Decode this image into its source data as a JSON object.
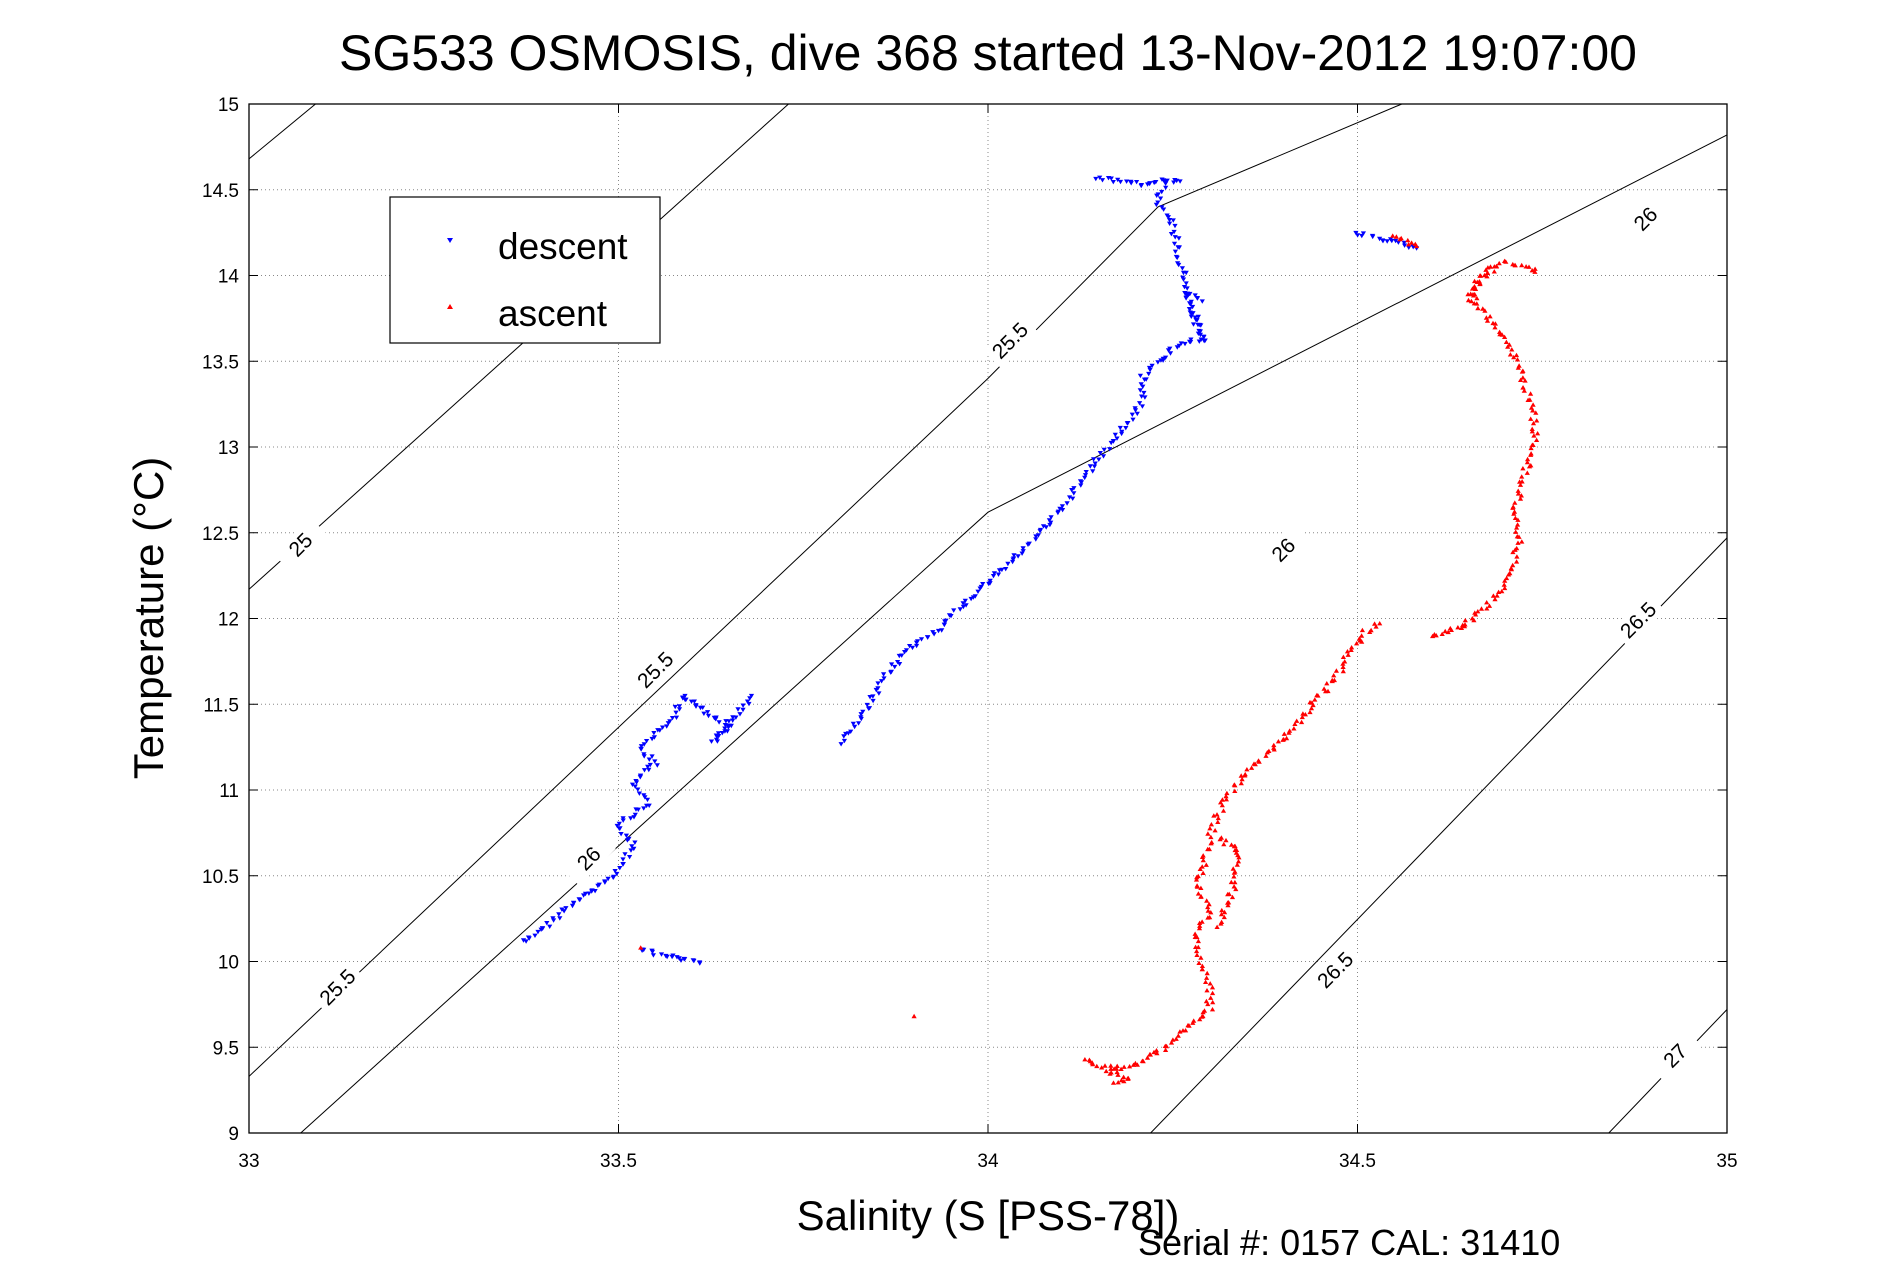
{
  "chart_data": {
    "type": "scatter",
    "title": "SG533 OSMOSIS, dive 368 started 13-Nov-2012 19:07:00",
    "xlabel": "Salinity (S [PSS-78])",
    "ylabel": "Temperature (°C)",
    "xlim": [
      33,
      35
    ],
    "ylim": [
      9,
      15
    ],
    "xticks": [
      "33",
      "33.5",
      "34",
      "34.5",
      "35"
    ],
    "yticks": [
      "9",
      "9.5",
      "10",
      "10.5",
      "11",
      "11.5",
      "12",
      "12.5",
      "13",
      "13.5",
      "14",
      "14.5",
      "15"
    ],
    "grid": true,
    "legend_position": "upper-left",
    "footer": "Serial #: 0157  CAL: 31410",
    "colors": {
      "descent": "#0000ff",
      "ascent": "#ff0000",
      "axes": "#000000",
      "grid": "#888888"
    },
    "isopycnals": [
      {
        "label": "25",
        "points": [
          [
            33.0,
            14.68
          ],
          [
            33.09,
            15.0
          ]
        ]
      },
      {
        "label": "25",
        "points": [
          [
            33.0,
            12.17
          ],
          [
            33.73,
            15.0
          ]
        ]
      },
      {
        "label": "25.5",
        "points": [
          [
            33.0,
            9.33
          ],
          [
            34.0,
            13.4
          ],
          [
            34.23,
            14.4
          ],
          [
            34.56,
            15.0
          ]
        ]
      },
      {
        "label": "26",
        "points": [
          [
            33.07,
            9.0
          ],
          [
            34.0,
            12.62
          ],
          [
            35.0,
            14.82
          ]
        ]
      },
      {
        "label": "26.5",
        "points": [
          [
            34.22,
            9.0
          ],
          [
            35.0,
            12.47
          ]
        ]
      },
      {
        "label": "27",
        "points": [
          [
            34.84,
            9.0
          ],
          [
            35.0,
            9.72
          ]
        ]
      }
    ],
    "contour_labels": [
      {
        "text": "25",
        "x": 33.07,
        "y": 12.43
      },
      {
        "text": "25.5",
        "x": 33.12,
        "y": 9.85
      },
      {
        "text": "25.5",
        "x": 33.55,
        "y": 11.7
      },
      {
        "text": "25.5",
        "x": 34.03,
        "y": 13.62
      },
      {
        "text": "26",
        "x": 33.46,
        "y": 10.6
      },
      {
        "text": "26",
        "x": 34.4,
        "y": 12.4
      },
      {
        "text": "26",
        "x": 34.89,
        "y": 14.33
      },
      {
        "text": "26.5",
        "x": 34.47,
        "y": 9.95
      },
      {
        "text": "26.5",
        "x": 34.88,
        "y": 11.99
      },
      {
        "text": "27",
        "x": 34.93,
        "y": 9.45
      }
    ],
    "series": [
      {
        "name": "descent",
        "marker": "triangle-down",
        "paths": [
          [
            [
              33.37,
              10.12
            ],
            [
              33.4,
              10.2
            ],
            [
              33.44,
              10.35
            ],
            [
              33.48,
              10.45
            ],
            [
              33.5,
              10.53
            ],
            [
              33.52,
              10.68
            ],
            [
              33.5,
              10.8
            ],
            [
              33.54,
              10.92
            ],
            [
              33.52,
              11.05
            ],
            [
              33.55,
              11.15
            ],
            [
              33.53,
              11.25
            ],
            [
              33.57,
              11.4
            ],
            [
              33.59,
              11.55
            ]
          ],
          [
            [
              33.59,
              11.55
            ],
            [
              33.62,
              11.45
            ],
            [
              33.65,
              11.38
            ],
            [
              33.63,
              11.28
            ],
            [
              33.68,
              11.55
            ]
          ],
          [
            [
              33.53,
              10.07
            ],
            [
              33.61,
              9.99
            ]
          ],
          [
            [
              33.8,
              11.28
            ],
            [
              33.83,
              11.42
            ],
            [
              33.86,
              11.65
            ],
            [
              33.89,
              11.82
            ],
            [
              33.93,
              11.93
            ],
            [
              33.96,
              12.05
            ],
            [
              33.99,
              12.18
            ],
            [
              34.03,
              12.32
            ],
            [
              34.07,
              12.5
            ],
            [
              34.1,
              12.65
            ],
            [
              34.13,
              12.82
            ],
            [
              34.16,
              13.0
            ],
            [
              34.19,
              13.15
            ],
            [
              34.21,
              13.28
            ],
            [
              34.21,
              13.42
            ],
            [
              34.23,
              13.5
            ],
            [
              34.26,
              13.6
            ],
            [
              34.29,
              13.63
            ],
            [
              34.28,
              13.75
            ],
            [
              34.27,
              13.9
            ],
            [
              34.26,
              14.1
            ],
            [
              34.25,
              14.3
            ],
            [
              34.23,
              14.42
            ],
            [
              34.24,
              14.55
            ]
          ],
          [
            [
              34.15,
              14.57
            ],
            [
              34.18,
              14.55
            ],
            [
              34.21,
              14.53
            ],
            [
              34.23,
              14.55
            ],
            [
              34.26,
              14.55
            ]
          ],
          [
            [
              34.29,
              13.63
            ],
            [
              34.27,
              13.9
            ],
            [
              34.29,
              13.85
            ]
          ],
          [
            [
              34.5,
              14.25
            ],
            [
              34.58,
              14.16
            ]
          ]
        ]
      },
      {
        "name": "ascent",
        "marker": "triangle-up",
        "paths": [
          [
            [
              34.13,
              9.43
            ],
            [
              34.17,
              9.37
            ],
            [
              34.2,
              9.4
            ],
            [
              34.24,
              9.5
            ],
            [
              34.27,
              9.62
            ],
            [
              34.3,
              9.72
            ],
            [
              34.3,
              9.85
            ],
            [
              34.29,
              10.0
            ],
            [
              34.28,
              10.15
            ],
            [
              34.3,
              10.3
            ],
            [
              34.28,
              10.45
            ],
            [
              34.29,
              10.55
            ],
            [
              34.3,
              10.72
            ],
            [
              34.31,
              10.85
            ],
            [
              34.33,
              11.0
            ],
            [
              34.35,
              11.1
            ],
            [
              34.38,
              11.22
            ],
            [
              34.41,
              11.35
            ],
            [
              34.44,
              11.5
            ],
            [
              34.47,
              11.65
            ],
            [
              34.49,
              11.8
            ],
            [
              34.51,
              11.92
            ],
            [
              34.53,
              11.97
            ]
          ],
          [
            [
              34.31,
              10.72
            ],
            [
              34.34,
              10.65
            ],
            [
              34.33,
              10.4
            ],
            [
              34.31,
              10.2
            ]
          ],
          [
            [
              34.17,
              9.28
            ],
            [
              34.19,
              9.32
            ],
            [
              34.16,
              9.36
            ]
          ],
          [
            [
              33.9,
              9.68
            ]
          ],
          [
            [
              33.53,
              10.08
            ]
          ],
          [
            [
              34.6,
              11.9
            ],
            [
              34.64,
              11.95
            ],
            [
              34.67,
              12.05
            ],
            [
              34.69,
              12.15
            ],
            [
              34.71,
              12.3
            ],
            [
              34.72,
              12.45
            ],
            [
              34.71,
              12.6
            ],
            [
              34.72,
              12.75
            ],
            [
              34.73,
              12.9
            ],
            [
              34.74,
              13.0
            ],
            [
              34.74,
              13.15
            ],
            [
              34.73,
              13.3
            ],
            [
              34.72,
              13.45
            ],
            [
              34.71,
              13.55
            ],
            [
              34.69,
              13.68
            ],
            [
              34.67,
              13.8
            ],
            [
              34.65,
              13.9
            ],
            [
              34.67,
              14.0
            ],
            [
              34.7,
              14.08
            ],
            [
              34.72,
              14.06
            ],
            [
              34.74,
              14.02
            ]
          ],
          [
            [
              34.55,
              14.23
            ],
            [
              34.58,
              14.17
            ]
          ],
          [
            [
              34.65,
              13.85
            ],
            [
              34.68,
              14.05
            ]
          ]
        ]
      }
    ]
  }
}
